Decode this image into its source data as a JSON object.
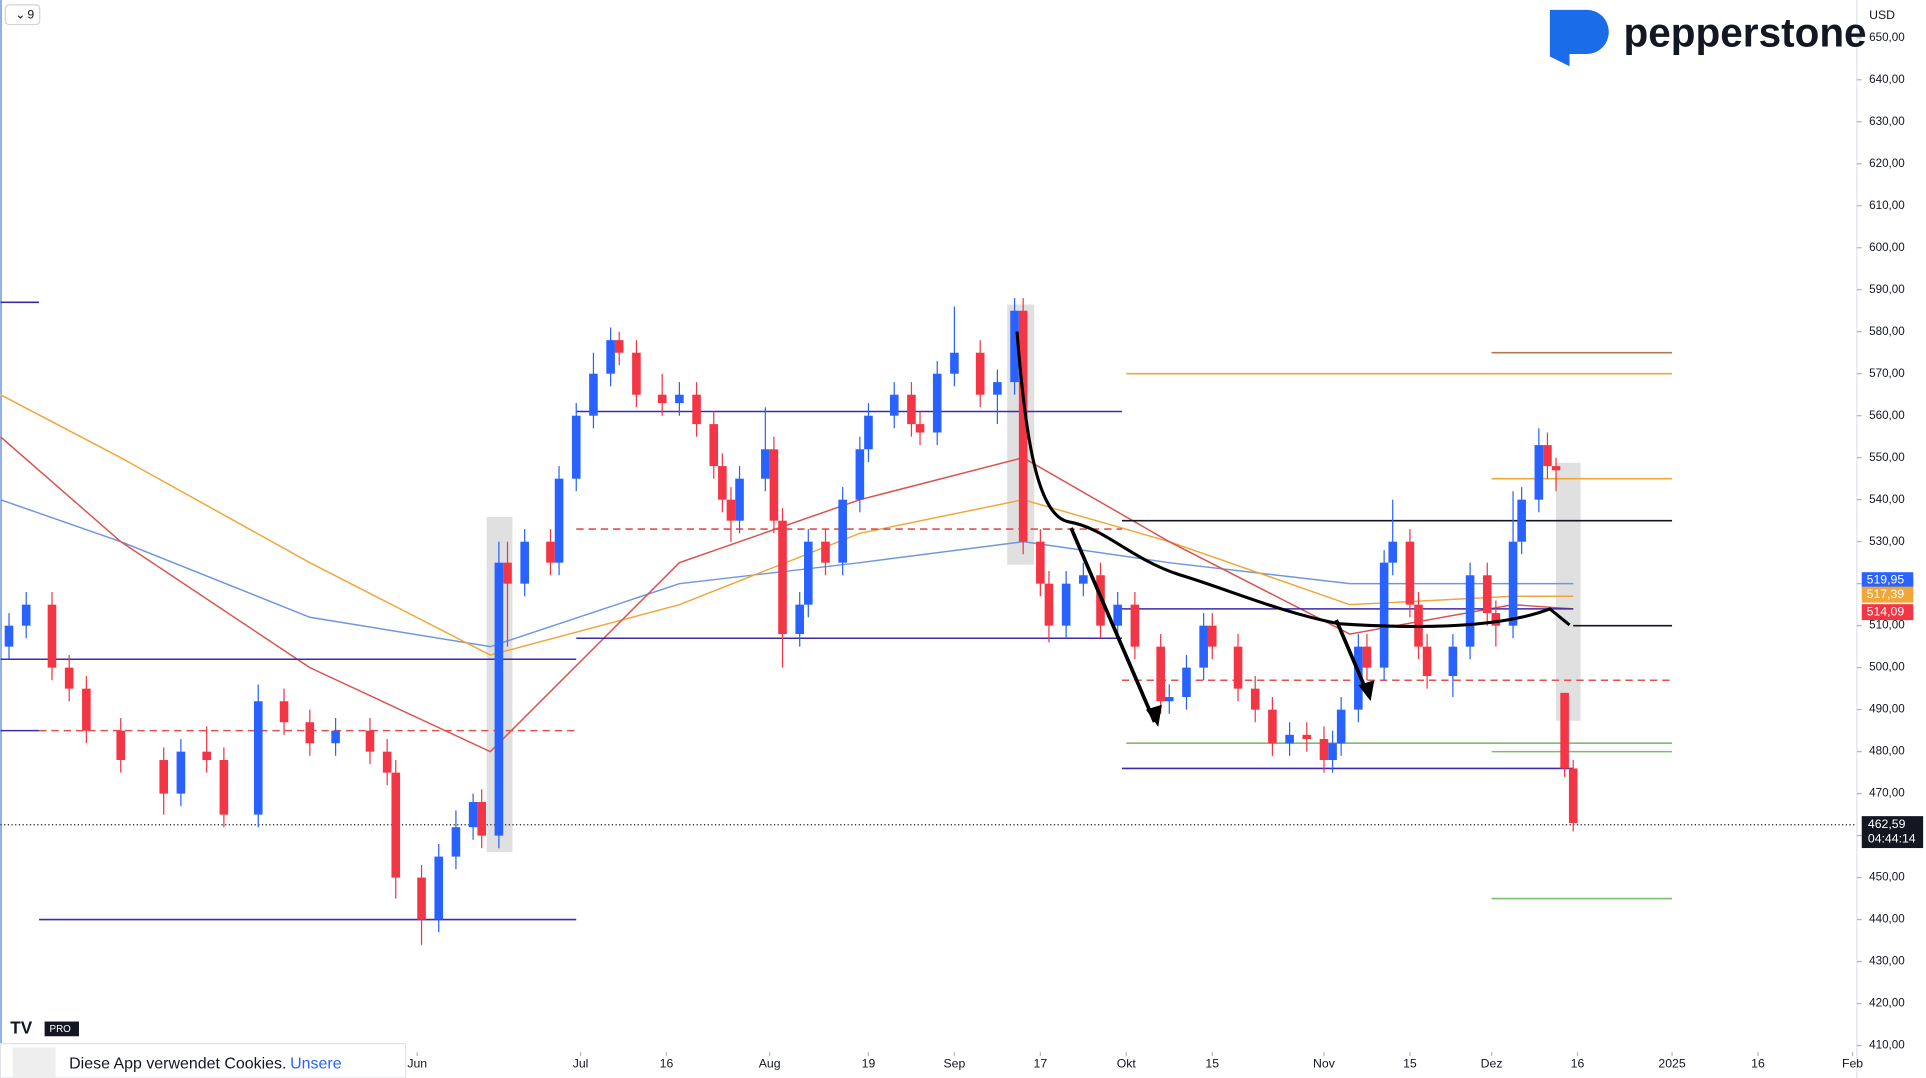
{
  "chart_data": {
    "type": "candlestick",
    "x": [
      1,
      3,
      6,
      8,
      10,
      14,
      19,
      21,
      24,
      26,
      30,
      33,
      36,
      39,
      43,
      45,
      46,
      49,
      51,
      53,
      55,
      56,
      58,
      59,
      61,
      64,
      65,
      67,
      69,
      71,
      72,
      74,
      77,
      79,
      81,
      83,
      84,
      85,
      86,
      89,
      90,
      91,
      93,
      94,
      96,
      98,
      100,
      101,
      104,
      106,
      107,
      109,
      111,
      114,
      116,
      118,
      119,
      121,
      122,
      124,
      126,
      128,
      130,
      132,
      135,
      136,
      138,
      140,
      141,
      144,
      146,
      148,
      150,
      152,
      154,
      155,
      156,
      158,
      159,
      161,
      162,
      164,
      165,
      166,
      169,
      171,
      173,
      174,
      176,
      177,
      179,
      180,
      181,
      182,
      183
    ],
    "open": [
      505,
      510,
      515,
      500,
      495,
      485,
      478,
      470,
      480,
      478,
      465,
      492,
      487,
      482,
      485,
      480,
      475,
      450,
      440,
      455,
      462,
      468,
      460,
      525,
      520,
      530,
      525,
      545,
      560,
      570,
      578,
      575,
      565,
      563,
      565,
      558,
      548,
      540,
      535,
      545,
      552,
      535,
      508,
      515,
      530,
      525,
      540,
      552,
      560,
      565,
      558,
      556,
      570,
      575,
      565,
      568,
      585,
      530,
      520,
      510,
      520,
      522,
      510,
      515,
      505,
      492,
      493,
      500,
      510,
      505,
      495,
      490,
      482,
      484,
      483,
      478,
      482,
      490,
      505,
      500,
      525,
      530,
      515,
      505,
      498,
      505,
      522,
      513,
      510,
      530,
      540,
      553,
      548,
      494,
      476
    ],
    "high": [
      513,
      518,
      518,
      503,
      498,
      488,
      481,
      483,
      486,
      481,
      496,
      495,
      490,
      488,
      488,
      483,
      478,
      453,
      458,
      466,
      470,
      471,
      530,
      530,
      533,
      533,
      548,
      563,
      575,
      581,
      580,
      578,
      570,
      568,
      568,
      561,
      551,
      543,
      548,
      562,
      555,
      538,
      518,
      533,
      533,
      543,
      555,
      563,
      568,
      568,
      561,
      573,
      586,
      578,
      571,
      588,
      588,
      533,
      523,
      523,
      525,
      525,
      518,
      518,
      508,
      496,
      503,
      513,
      513,
      508,
      498,
      493,
      487,
      487,
      486,
      485,
      493,
      508,
      508,
      528,
      540,
      533,
      518,
      508,
      508,
      525,
      525,
      516,
      542,
      543,
      557,
      556,
      550,
      494,
      478
    ],
    "low": [
      502,
      507,
      497,
      492,
      482,
      475,
      465,
      467,
      475,
      462,
      462,
      484,
      479,
      479,
      477,
      472,
      445,
      434,
      437,
      452,
      459,
      457,
      457,
      505,
      517,
      522,
      522,
      542,
      557,
      567,
      572,
      562,
      560,
      560,
      555,
      545,
      537,
      530,
      532,
      542,
      532,
      500,
      505,
      512,
      522,
      522,
      537,
      549,
      557,
      555,
      553,
      553,
      567,
      562,
      558,
      565,
      527,
      517,
      506,
      507,
      517,
      507,
      507,
      502,
      489,
      489,
      490,
      497,
      502,
      492,
      487,
      479,
      479,
      480,
      475,
      475,
      479,
      487,
      497,
      497,
      522,
      512,
      502,
      495,
      493,
      502,
      510,
      505,
      507,
      527,
      537,
      545,
      542,
      474,
      461
    ],
    "close": [
      510,
      515,
      500,
      495,
      485,
      478,
      470,
      480,
      478,
      465,
      492,
      487,
      482,
      485,
      480,
      475,
      450,
      440,
      455,
      462,
      468,
      460,
      525,
      520,
      530,
      525,
      545,
      560,
      570,
      578,
      575,
      565,
      563,
      565,
      558,
      548,
      540,
      535,
      545,
      552,
      535,
      508,
      515,
      530,
      525,
      540,
      552,
      560,
      565,
      558,
      556,
      570,
      575,
      565,
      568,
      585,
      530,
      520,
      510,
      520,
      522,
      510,
      515,
      505,
      492,
      493,
      500,
      510,
      505,
      495,
      490,
      482,
      484,
      483,
      478,
      482,
      490,
      505,
      500,
      525,
      530,
      515,
      505,
      498,
      505,
      522,
      513,
      510,
      530,
      540,
      553,
      548,
      547,
      476,
      463
    ],
    "up_color": "#2962ff",
    "down_color": "#f23645",
    "lines": [
      {
        "color": "#6f97dc",
        "x": [
          0,
          14,
          36,
          57,
          79,
          100,
          119,
          136,
          157,
          176,
          183
        ],
        "values": [
          540,
          530,
          512,
          505,
          520,
          525,
          530,
          525,
          520,
          520,
          520
        ]
      },
      {
        "color": "#f0a73a",
        "x": [
          0,
          14,
          36,
          57,
          79,
          100,
          119,
          136,
          157,
          176,
          183
        ],
        "values": [
          565,
          550,
          525,
          503,
          515,
          532,
          540,
          530,
          515,
          517,
          517
        ]
      },
      {
        "color": "#d9534f",
        "x": [
          0,
          14,
          36,
          57,
          79,
          100,
          119,
          136,
          157,
          176,
          183
        ],
        "values": [
          555,
          530,
          500,
          480,
          525,
          540,
          550,
          530,
          508,
          515,
          514
        ]
      }
    ],
    "hlines": [
      {
        "value": 587,
        "from": 0,
        "to": 4.5,
        "color": "#3f2aa8",
        "dash": false
      },
      {
        "value": 485,
        "from": 0,
        "to": 4.5,
        "color": "#3f2aa8",
        "dash": false
      },
      {
        "value": 502,
        "from": 0,
        "to": 67,
        "color": "#3f2aa8",
        "dash": false
      },
      {
        "value": 440,
        "from": 4.5,
        "to": 67,
        "color": "#3f2aa8",
        "dash": false
      },
      {
        "value": 485,
        "from": 4.5,
        "to": 67,
        "color": "#e0524f",
        "dash": true
      },
      {
        "value": 561,
        "from": 67,
        "to": 130.5,
        "color": "#3f2aa8",
        "dash": false
      },
      {
        "value": 507,
        "from": 67,
        "to": 130.5,
        "color": "#3f2aa8",
        "dash": false
      },
      {
        "value": 533,
        "from": 67,
        "to": 130.5,
        "color": "#e0524f",
        "dash": true
      },
      {
        "value": 476,
        "from": 130.5,
        "to": 183,
        "color": "#3f2aa8",
        "dash": false
      },
      {
        "value": 514,
        "from": 130.5,
        "to": 183,
        "color": "#3f2aa8",
        "dash": false
      },
      {
        "value": 535,
        "from": 130.5,
        "to": 194.5,
        "color": "#131722",
        "dash": false
      },
      {
        "value": 570,
        "from": 131,
        "to": 194.5,
        "color": "#f0a73a",
        "dash": false
      },
      {
        "value": 482,
        "from": 131,
        "to": 194.5,
        "color": "#7cbf6a",
        "dash": false
      },
      {
        "value": 497,
        "from": 130.5,
        "to": 194.5,
        "color": "#e0524f",
        "dash": true
      },
      {
        "value": 510,
        "from": 183,
        "to": 194.5,
        "color": "#131722",
        "dash": false
      },
      {
        "value": 575,
        "from": 173.5,
        "to": 194.5,
        "color": "#b07a50",
        "dash": false
      },
      {
        "value": 545,
        "from": 173.5,
        "to": 194.5,
        "color": "#f0a73a",
        "dash": false
      },
      {
        "value": 480,
        "from": 173.5,
        "to": 194.5,
        "color": "#7cbf6a",
        "dash": false
      },
      {
        "value": 445,
        "from": 173.5,
        "to": 194.5,
        "color": "#7cbf6a",
        "dash": false
      }
    ],
    "last_price": {
      "value": 462.59,
      "label": "462,59"
    },
    "countdown": "04:44:14",
    "price_labels": [
      {
        "value": 519.95,
        "label": "519,95",
        "color": "#2962ff"
      },
      {
        "value": 517.39,
        "label": "517,39",
        "color": "#f0a73a"
      },
      {
        "value": 514.09,
        "label": "514,09",
        "color": "#f23645"
      }
    ],
    "currency": "USD",
    "xlim": [
      0,
      216
    ],
    "ylim": [
      409,
      659
    ],
    "xticks": [
      {
        "value": 48.5,
        "label": "Jun"
      },
      {
        "value": 67.5,
        "label": "Jul"
      },
      {
        "value": 77.5,
        "label": "16"
      },
      {
        "value": 89.5,
        "label": "Aug"
      },
      {
        "value": 101,
        "label": "19"
      },
      {
        "value": 111,
        "label": "Sep"
      },
      {
        "value": 121,
        "label": "17"
      },
      {
        "value": 131,
        "label": "Okt"
      },
      {
        "value": 141,
        "label": "15"
      },
      {
        "value": 154,
        "label": "Nov"
      },
      {
        "value": 164,
        "label": "15"
      },
      {
        "value": 173.5,
        "label": "Dez"
      },
      {
        "value": 183.5,
        "label": "16"
      },
      {
        "value": 194.5,
        "label": "2025"
      },
      {
        "value": 204.5,
        "label": "16"
      },
      {
        "value": 215.5,
        "label": "Feb"
      }
    ],
    "yticks": [
      {
        "value": 410,
        "label": "410,00"
      },
      {
        "value": 420,
        "label": "420,00"
      },
      {
        "value": 430,
        "label": "430,00"
      },
      {
        "value": 440,
        "label": "440,00"
      },
      {
        "value": 450,
        "label": "450,00"
      },
      {
        "value": 460,
        "label": "460,00"
      },
      {
        "value": 470,
        "label": "470,00"
      },
      {
        "value": 480,
        "label": "480,00"
      },
      {
        "value": 490,
        "label": "490,00"
      },
      {
        "value": 500,
        "label": "500,00"
      },
      {
        "value": 510,
        "label": "510,00"
      },
      {
        "value": 520,
        "label": "520,00"
      },
      {
        "value": 530,
        "label": "530,00"
      },
      {
        "value": 540,
        "label": "540,00"
      },
      {
        "value": 550,
        "label": "550,00"
      },
      {
        "value": 560,
        "label": "560,00"
      },
      {
        "value": 570,
        "label": "570,00"
      },
      {
        "value": 580,
        "label": "580,00"
      },
      {
        "value": 590,
        "label": "590,00"
      },
      {
        "value": 600,
        "label": "600,00"
      },
      {
        "value": 610,
        "label": "610,00"
      },
      {
        "value": 620,
        "label": "620,00"
      },
      {
        "value": 630,
        "label": "630,00"
      },
      {
        "value": 640,
        "label": "640,00"
      },
      {
        "value": 650,
        "label": "650,00"
      }
    ],
    "grid": false
  },
  "ui": {
    "interval": "9",
    "brand": "pepperstone",
    "badge": "PRO",
    "cookie_text": "Diese App verwendet Cookies.",
    "cookie_link": "Unsere"
  }
}
